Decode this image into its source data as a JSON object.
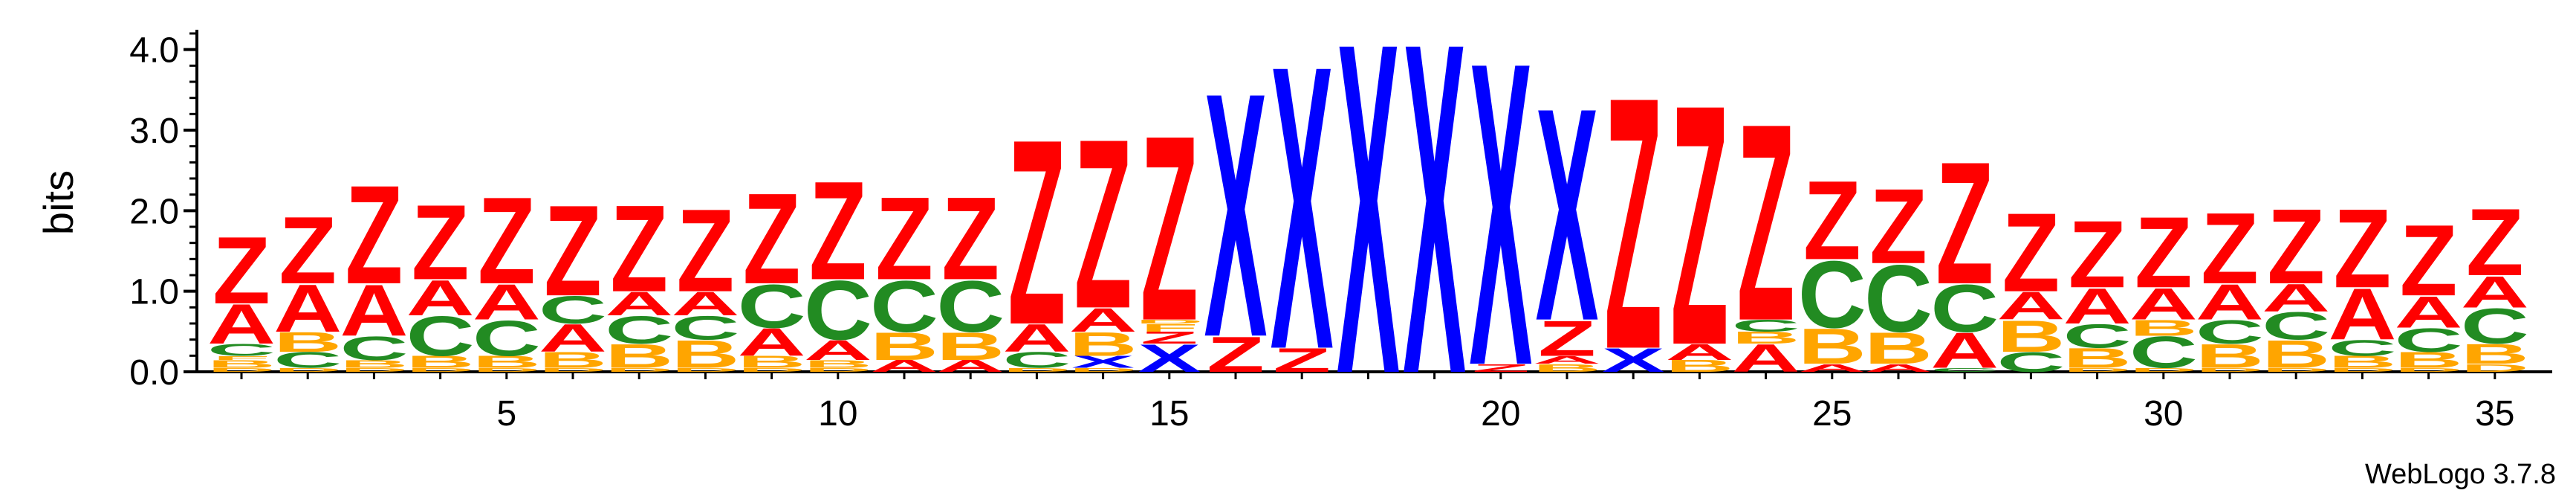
{
  "chart_data": {
    "type": "sequence-logo",
    "ylabel": "bits",
    "ylim": [
      0,
      4.2
    ],
    "y_ticks": [
      "0.0",
      "1.0",
      "2.0",
      "3.0",
      "4.0"
    ],
    "x_tick_labels": [
      "5",
      "10",
      "15",
      "20",
      "25",
      "30",
      "35"
    ],
    "x_tick_positions": [
      5,
      10,
      15,
      20,
      25,
      30,
      35
    ],
    "colors": {
      "Z": "#ff0000",
      "X": "#0000ff",
      "C": "#228b22",
      "A": "#ff0000",
      "B": "#ffa500"
    },
    "positions": [
      {
        "pos": 1,
        "stack": [
          [
            "D",
            0.05
          ],
          [
            "B",
            0.1
          ],
          [
            "F",
            0.05
          ],
          [
            "C",
            0.15
          ],
          [
            "A",
            0.5
          ],
          [
            "Z",
            0.85
          ]
        ]
      },
      {
        "pos": 2,
        "stack": [
          [
            "D",
            0.05
          ],
          [
            "C",
            0.2
          ],
          [
            "B",
            0.25
          ],
          [
            "A",
            0.6
          ],
          [
            "Z",
            0.85
          ]
        ]
      },
      {
        "pos": 3,
        "stack": [
          [
            "D",
            0.05
          ],
          [
            "B",
            0.1
          ],
          [
            "C",
            0.3
          ],
          [
            "A",
            0.65
          ],
          [
            "Z",
            1.25
          ]
        ]
      },
      {
        "pos": 4,
        "stack": [
          [
            "D",
            0.05
          ],
          [
            "B",
            0.15
          ],
          [
            "C",
            0.5
          ],
          [
            "A",
            0.45
          ],
          [
            "Z",
            0.95
          ]
        ]
      },
      {
        "pos": 5,
        "stack": [
          [
            "D",
            0.05
          ],
          [
            "B",
            0.15
          ],
          [
            "C",
            0.45
          ],
          [
            "A",
            0.45
          ],
          [
            "Z",
            1.1
          ]
        ]
      },
      {
        "pos": 6,
        "stack": [
          [
            "D",
            0.05
          ],
          [
            "B",
            0.2
          ],
          [
            "A",
            0.35
          ],
          [
            "C",
            0.35
          ],
          [
            "Z",
            1.15
          ]
        ]
      },
      {
        "pos": 7,
        "stack": [
          [
            "D",
            0.05
          ],
          [
            "B",
            0.3
          ],
          [
            "C",
            0.35
          ],
          [
            "A",
            0.3
          ],
          [
            "Z",
            1.1
          ]
        ]
      },
      {
        "pos": 8,
        "stack": [
          [
            "D",
            0.05
          ],
          [
            "B",
            0.35
          ],
          [
            "C",
            0.3
          ],
          [
            "A",
            0.3
          ],
          [
            "Z",
            1.05
          ]
        ]
      },
      {
        "pos": 9,
        "stack": [
          [
            "D",
            0.05
          ],
          [
            "B",
            0.15
          ],
          [
            "A",
            0.35
          ],
          [
            "C",
            0.55
          ],
          [
            "Z",
            1.15
          ]
        ]
      },
      {
        "pos": 10,
        "stack": [
          [
            "D",
            0.05
          ],
          [
            "B",
            0.1
          ],
          [
            "A",
            0.25
          ],
          [
            "C",
            0.75
          ],
          [
            "Z",
            1.25
          ]
        ]
      },
      {
        "pos": 11,
        "stack": [
          [
            "A",
            0.15
          ],
          [
            "B",
            0.35
          ],
          [
            "C",
            0.65
          ],
          [
            "Z",
            1.05
          ]
        ]
      },
      {
        "pos": 12,
        "stack": [
          [
            "A",
            0.15
          ],
          [
            "B",
            0.35
          ],
          [
            "C",
            0.65
          ],
          [
            "Z",
            1.05
          ]
        ]
      },
      {
        "pos": 13,
        "stack": [
          [
            "D",
            0.05
          ],
          [
            "C",
            0.2
          ],
          [
            "A",
            0.35
          ],
          [
            "Z",
            2.35
          ]
        ]
      },
      {
        "pos": 14,
        "stack": [
          [
            "D",
            0.05
          ],
          [
            "X",
            0.15
          ],
          [
            "B",
            0.3
          ],
          [
            "A",
            0.3
          ],
          [
            "Z",
            2.15
          ]
        ]
      },
      {
        "pos": 15,
        "stack": [
          [
            "X",
            0.35
          ],
          [
            "Z",
            0.15
          ],
          [
            "F",
            0.1
          ],
          [
            "D",
            0.05
          ],
          [
            "Z",
            2.35
          ]
        ]
      },
      {
        "pos": 16,
        "stack": [
          [
            "Z",
            0.45
          ],
          [
            "X",
            3.1
          ]
        ]
      },
      {
        "pos": 17,
        "stack": [
          [
            "Z",
            0.3
          ],
          [
            "X",
            3.6
          ]
        ]
      },
      {
        "pos": 18,
        "stack": [
          [
            "X",
            4.2
          ]
        ]
      },
      {
        "pos": 19,
        "stack": [
          [
            "X",
            4.2
          ]
        ]
      },
      {
        "pos": 20,
        "stack": [
          [
            "Z",
            0.1
          ],
          [
            "X",
            3.85
          ]
        ]
      },
      {
        "pos": 21,
        "stack": [
          [
            "B",
            0.1
          ],
          [
            "A",
            0.1
          ],
          [
            "Z",
            0.45
          ],
          [
            "X",
            2.7
          ]
        ]
      },
      {
        "pos": 22,
        "stack": [
          [
            "X",
            0.3
          ],
          [
            "Z",
            3.2
          ]
        ]
      },
      {
        "pos": 23,
        "stack": [
          [
            "B",
            0.15
          ],
          [
            "A",
            0.2
          ],
          [
            "Z",
            3.05
          ]
        ]
      },
      {
        "pos": 24,
        "stack": [
          [
            "A",
            0.35
          ],
          [
            "B",
            0.15
          ],
          [
            "C",
            0.15
          ],
          [
            "Z",
            2.5
          ]
        ]
      },
      {
        "pos": 25,
        "stack": [
          [
            "A",
            0.1
          ],
          [
            "B",
            0.45
          ],
          [
            "C",
            0.85
          ],
          [
            "Z",
            1.0
          ]
        ]
      },
      {
        "pos": 26,
        "stack": [
          [
            "A",
            0.1
          ],
          [
            "B",
            0.4
          ],
          [
            "C",
            0.85
          ],
          [
            "Z",
            0.95
          ]
        ]
      },
      {
        "pos": 27,
        "stack": [
          [
            "C",
            0.05
          ],
          [
            "A",
            0.45
          ],
          [
            "C",
            0.6
          ],
          [
            "Z",
            1.55
          ]
        ]
      },
      {
        "pos": 28,
        "stack": [
          [
            "C",
            0.25
          ],
          [
            "B",
            0.4
          ],
          [
            "A",
            0.35
          ],
          [
            "Z",
            1.0
          ]
        ]
      },
      {
        "pos": 29,
        "stack": [
          [
            "D",
            0.05
          ],
          [
            "B",
            0.25
          ],
          [
            "C",
            0.3
          ],
          [
            "A",
            0.45
          ],
          [
            "Z",
            0.85
          ]
        ]
      },
      {
        "pos": 30,
        "stack": [
          [
            "D",
            0.05
          ],
          [
            "C",
            0.4
          ],
          [
            "B",
            0.2
          ],
          [
            "A",
            0.4
          ],
          [
            "Z",
            0.9
          ]
        ]
      },
      {
        "pos": 31,
        "stack": [
          [
            "D",
            0.05
          ],
          [
            "B",
            0.3
          ],
          [
            "C",
            0.3
          ],
          [
            "A",
            0.45
          ],
          [
            "Z",
            0.9
          ]
        ]
      },
      {
        "pos": 32,
        "stack": [
          [
            "D",
            0.05
          ],
          [
            "B",
            0.35
          ],
          [
            "C",
            0.35
          ],
          [
            "A",
            0.35
          ],
          [
            "Z",
            0.95
          ]
        ]
      },
      {
        "pos": 33,
        "stack": [
          [
            "D",
            0.05
          ],
          [
            "B",
            0.15
          ],
          [
            "C",
            0.2
          ],
          [
            "A",
            0.65
          ],
          [
            "Z",
            1.0
          ]
        ]
      },
      {
        "pos": 34,
        "stack": [
          [
            "D",
            0.05
          ],
          [
            "B",
            0.2
          ],
          [
            "C",
            0.3
          ],
          [
            "A",
            0.4
          ],
          [
            "Z",
            0.9
          ]
        ]
      },
      {
        "pos": 35,
        "stack": [
          [
            "D",
            0.1
          ],
          [
            "B",
            0.25
          ],
          [
            "C",
            0.45
          ],
          [
            "A",
            0.4
          ],
          [
            "Z",
            0.85
          ]
        ]
      }
    ]
  },
  "footer": {
    "credit": "WebLogo 3.7.8"
  }
}
